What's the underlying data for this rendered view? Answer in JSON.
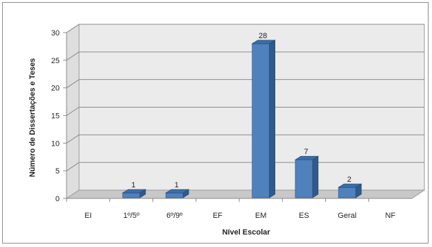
{
  "chart_data": {
    "type": "bar",
    "title": "",
    "xlabel": "Nível Escolar",
    "ylabel": "Número de Dissertações e Teses",
    "categories": [
      "EI",
      "1º/5º",
      "6º/9º",
      "EF",
      "EM",
      "ES",
      "Geral",
      "NF"
    ],
    "values": [
      0,
      1,
      1,
      0,
      28,
      7,
      2,
      0
    ],
    "data_labels": [
      "",
      "1",
      "1",
      "",
      "28",
      "7",
      "2",
      ""
    ],
    "ylim": [
      0,
      30
    ],
    "yticks": [
      0,
      5,
      10,
      15,
      20,
      25,
      30
    ],
    "grid": true,
    "legend": "none",
    "colors": {
      "bar_front": "#4f81bd",
      "bar_side": "#2f5a8c",
      "bar_top": "#3d6da8",
      "wall": "#ebebeb",
      "floor": "#c8c8c8",
      "gridline": "#8a8a8a"
    }
  }
}
